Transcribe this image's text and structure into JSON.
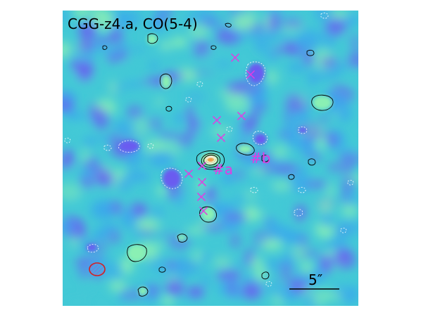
{
  "figure": {
    "title": "CGG-z4.a, CO(5-4)",
    "scale_bar_label": "5″",
    "source_labels": [
      "#a",
      "#b"
    ],
    "colors": {
      "map_base": "#43c9d6",
      "map_low": "#6a5cf0",
      "map_mid": "#3aa8ec",
      "map_high": "#8af0b4",
      "peak": "#ff3b10",
      "marker": "#e23be2",
      "beam": "#d42020",
      "contour_positive": "#000000",
      "contour_negative": "#ffffff"
    },
    "marker_symbol": "cross",
    "beam_hatched": true
  }
}
